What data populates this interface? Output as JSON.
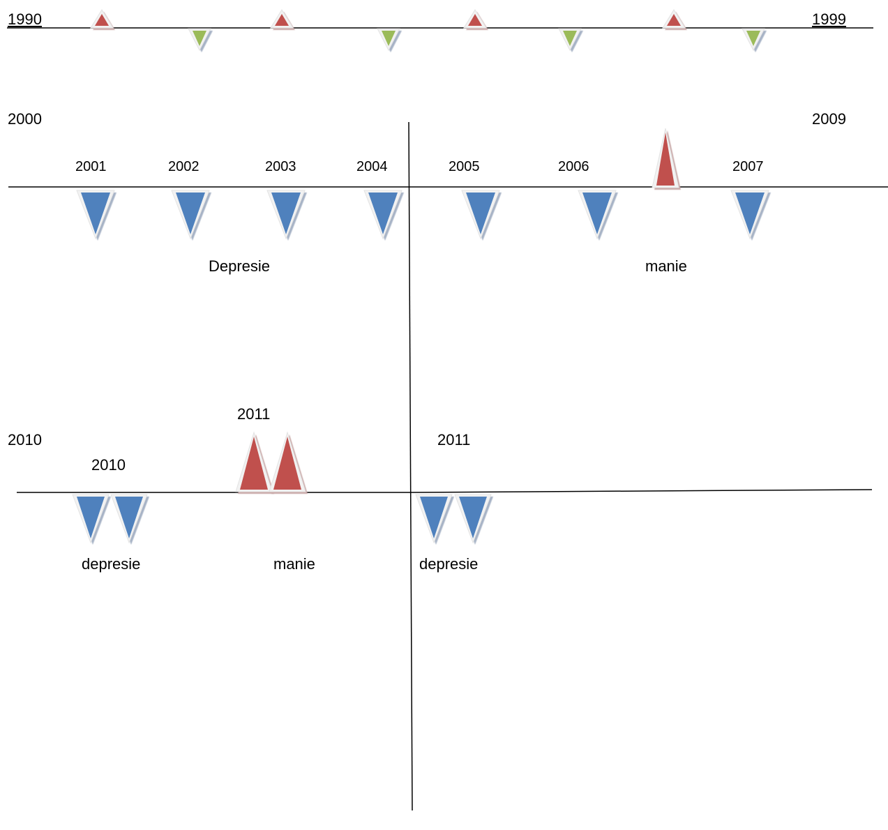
{
  "timeline_1990s": {
    "start_label": "1990",
    "end_label": "1999",
    "markers": [
      "up",
      "down",
      "up",
      "down",
      "up",
      "down",
      "up",
      "down"
    ]
  },
  "timeline_2000s": {
    "start_label": "2000",
    "end_label": "2009",
    "markers": [
      {
        "year": "2001",
        "direction": "down"
      },
      {
        "year": "2002",
        "direction": "down"
      },
      {
        "year": "2003",
        "direction": "down"
      },
      {
        "year": "2004",
        "direction": "down"
      },
      {
        "year": "2005",
        "direction": "down"
      },
      {
        "year": "2006",
        "direction": "down"
      },
      {
        "year": "",
        "direction": "up"
      },
      {
        "year": "2007",
        "direction": "down"
      }
    ],
    "depression_label": "Depresie",
    "mania_label": "manie"
  },
  "timeline_2010s": {
    "start_label": "2010",
    "year_2010_label": "2010",
    "year_2011_mania_label": "2011",
    "year_2011_label": "2011",
    "depression_label_1": "depresie",
    "mania_label": "manie",
    "depression_label_2": "depresie"
  },
  "colors": {
    "mania": "#c0504d",
    "depression": "#4f81bd",
    "minor_down": "#9bbb59",
    "line": "#000000"
  }
}
